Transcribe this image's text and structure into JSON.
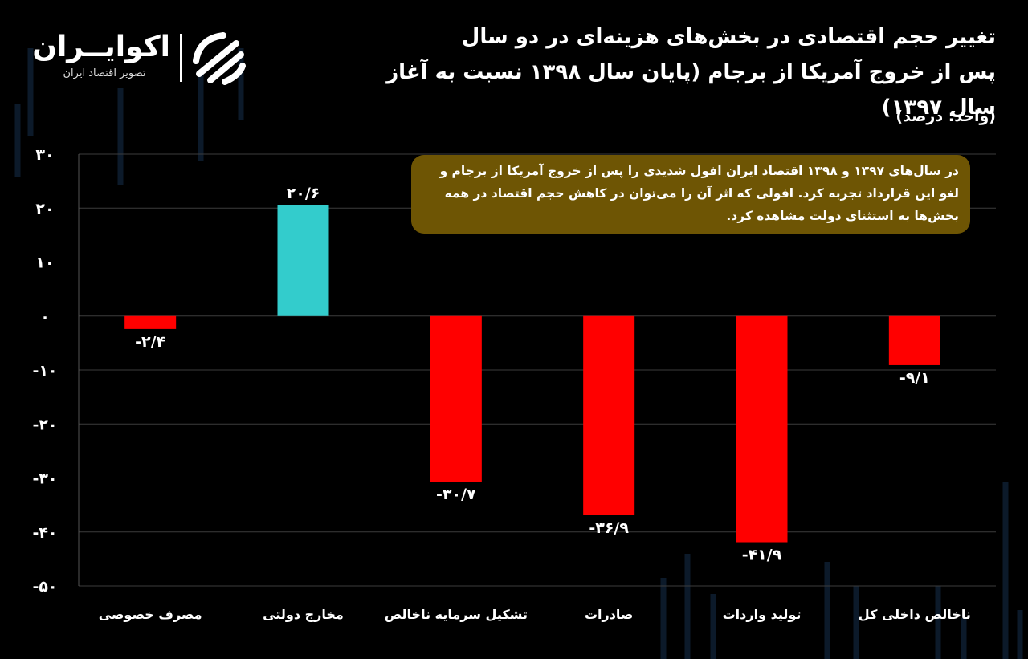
{
  "header": {
    "title_line1": "تغییر حجم اقتصادی در بخش‌های هزینه‌ای در دو سال",
    "title_line2": "پس از خروج آمریکا از برجام (پایان سال ۱۳۹۸ نسبت به آغاز سال ۱۳۹۷)",
    "unit": "(واحد: درصد)"
  },
  "brand": {
    "name": "اکوایــران",
    "tagline": "تصویر اقتصاد ایران",
    "icon": "ecoiran-logo-icon"
  },
  "annotation": {
    "text": "در سال‌های ۱۳۹۷ و ۱۳۹۸ اقتصاد ایران افول شدیدی را پس از خروج آمریکا از برجام و لغو این قرارداد تجربه کرد. افولی که اثر آن را می‌توان در کاهش حجم اقتصاد در همه بخش‌ها به استثنای دولت مشاهده کرد."
  },
  "chart_data": {
    "type": "bar",
    "title": "تغییر حجم اقتصادی در بخش‌های هزینه‌ای در دو سال پس از خروج آمریکا از برجام (پایان سال ۱۳۹۸ نسبت به آغاز سال ۱۳۹۷)",
    "ylabel": "(واحد: درصد)",
    "xlabel": "",
    "categories": [
      "مصرف خصوصی",
      "مخارج دولتی",
      "تشکیل سرمایه ناخالص",
      "صادرات",
      "تولید واردات",
      "ناخالص داخلی کل"
    ],
    "values": [
      -2.4,
      20.6,
      -30.7,
      -36.9,
      -41.9,
      -9.1
    ],
    "value_labels": [
      "-۲/۴",
      "۲۰/۶",
      "-۳۰/۷",
      "-۳۶/۹",
      "-۴۱/۹",
      "-۹/۱"
    ],
    "bar_colors": [
      "#ff0000",
      "#33cccc",
      "#ff0000",
      "#ff0000",
      "#ff0000",
      "#ff0000"
    ],
    "ylim": [
      -50,
      30
    ],
    "yticks": [
      30,
      20,
      10,
      0,
      -10,
      -20,
      -30,
      -40,
      -50
    ],
    "ytick_labels": [
      "۳۰",
      "۲۰",
      "۱۰",
      "۰",
      "-۱۰",
      "-۲۰",
      "-۳۰",
      "-۴۰",
      "-۵۰"
    ],
    "grid": true,
    "legend": "none"
  },
  "colors": {
    "background": "#000000",
    "negative": "#ff0000",
    "positive": "#33cccc",
    "annotation_bg": "#6e5504",
    "grid": "#3c3c3c"
  }
}
